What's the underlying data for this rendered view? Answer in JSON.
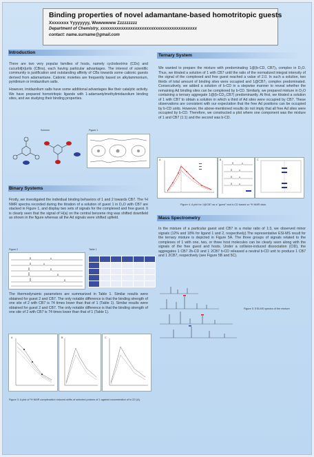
{
  "header": {
    "title": "Binding properties of  novel adamantane-based homotritopic guests",
    "authors": "Xxxxxxxx Yyyyyyyy, Wwwwwww Zzzzzzzzz",
    "affiliation": "Department of Chemistry, xxxxxxxxxxxxxxxxxxxxxxxxxxxxxxxxxxxxxxxxxx",
    "contact": "contact: name.surname@gmail.com"
  },
  "intro": {
    "heading": "Introduction",
    "p1": "There are two very popular families of hosts, namely cyclodextrins (CDs) and cucurbit[n]urils (CBns), each having particular advantages. The interest of scientific community is justification and outstanding affinity of CBs towards some cationic guests derived from adamantane. Cationic moieties are frequently based on alkylammonium, pyridinium or imidazolium salts.",
    "p2": "However, imidazolium salts have some additional advantages like their catalytic activity. We have prepared homotritopic ligands with 1-adamantylmethylimidazolium binding sites, and we studying their binding properties."
  },
  "scheme_label": "Scheme",
  "figure1_label": "Figure 1",
  "binary": {
    "heading": "Binary Systems",
    "p1": "Firstly, we investigated the individual binding behaviors of 1 and 2 towards CB7. The ¹H NMR spectra recorded during the titration of a solution of guest 1 in D₂O with CB7 are stacked in Figure 1, and display two sets of signals for the complexed and free guest. It is clearly seen that the signal of H(a) on the central benzene ring was shifted downfield as shown in the figure whereas all the Ad signals were shifted upfield.",
    "p2": "The thermodynamic parameters are summarized in Table 1. Similar results were obtained for guest 2 and CB7. The only notable difference is that the binding strength of one site of 2 with CB7 is 74 times lower than that of 1 (Table 1). Similar results were obtained for guest 2 and CB7. The only notable difference is that the binding strength of one site of 2 with CB7 is 74 times lower than that of 1 (Table 1)."
  },
  "figure2_label": "Figure 2",
  "table1_label": "Table 1",
  "table1": {
    "header": [
      "",
      "",
      "",
      "",
      "",
      ""
    ],
    "rows": [
      [
        "",
        "",
        "",
        "",
        "",
        ""
      ],
      [
        "",
        "",
        "",
        "",
        "",
        ""
      ],
      [
        "",
        "",
        "",
        "",
        "",
        ""
      ],
      [
        "",
        "",
        "",
        "",
        "",
        ""
      ]
    ]
  },
  "figure3_caption": "Figure 3. A plot of ¹H NMR complexation induced shifts of selected protons of 1 against concentration of b-CD (A).",
  "ternary": {
    "heading": "Ternary System",
    "p1": "We wanted to prepare the mixture with predominating 1@(b-CD, CB7)₃ complex in D₂O. Thus, we titrated a solution of 1 with CB7 until the ratio of the normalized integral intensity of the signal of the complexed and free guest reached a value of 2.0. In such a solution, two thirds of total amount of binding sites were occupied and 1@CB7₂ complex predominated. Consecutively, we added a solution of b-CD in a stepwise manner to reveal whether the remaining Ad binding sites can be complexed by b-CD. Similarly, we prepared mixture in D₂O containing a ternary aggregate 1@(b-CD₂,CB7) predominantly. At first, we titrated a solution of 1 with CB7 to obtain a solution in which a third of Ad sites were occupied by CB7. These observations are consistent with our expectation that the free Ad positions can be occupied by b-CD units. However, the above-mentioned results do not imply that all free Ad sites were occupied by b-CD. Therefore, we constructed a plot where one component was the mixture of 1 and CB7 (1:1) and the second was b-CD."
  },
  "figure4_caption": "Figure 4.  A plot for 1@CB7 as a \"guest\" and b-CD based on ¹H NMR data.",
  "mass": {
    "heading": "Mass Spectrometry",
    "p1": "In the mixture of a particular guest and CB7 in a molar ratio of 1:3, we observed minor signals (12% and 18% for ligand 1 and 2, respectively).The representative ESI-MS result for the ternary mixture is depicted in Figure 5A. The three groups of signals related to the complexes of 1 with one, two, or three host molecules can be clearly seen along with the signals of the free guest and hosts. Under a collision-induced dissociation (CID), the aggregates 1 CB7 2b-CD and 1 2CB7 b-CD released a neutral b-CD unit to produce 1 CB7 and 1 2CB7, respectively (see Figure 5B and 5C)."
  },
  "figure5_caption": "Figure 5. ESI-MS spectra of the mixture",
  "panel_labels": {
    "a": "A",
    "b": "B",
    "c": "C"
  },
  "colors": {
    "header_bg": "#f4f4f4",
    "poster_bg": "#c4dcf3",
    "accent": "#3b4fa0",
    "plot_red": "#d22222",
    "plot_blue": "#2233aa"
  }
}
